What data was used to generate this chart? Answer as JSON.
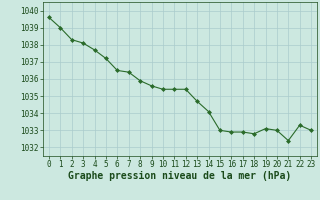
{
  "x": [
    0,
    1,
    2,
    3,
    4,
    5,
    6,
    7,
    8,
    9,
    10,
    11,
    12,
    13,
    14,
    15,
    16,
    17,
    18,
    19,
    20,
    21,
    22,
    23
  ],
  "y": [
    1039.6,
    1039.0,
    1038.3,
    1038.1,
    1037.7,
    1037.2,
    1036.5,
    1036.4,
    1035.9,
    1035.6,
    1035.4,
    1035.4,
    1035.4,
    1034.7,
    1034.1,
    1033.0,
    1032.9,
    1032.9,
    1032.8,
    1033.1,
    1033.0,
    1032.4,
    1033.3,
    1033.0
  ],
  "line_color": "#2a6b2a",
  "marker": "D",
  "marker_size": 2.0,
  "bg_color": "#cce8e0",
  "grid_color": "#aacccc",
  "tick_color": "#1a4a1a",
  "label_color": "#1a4a1a",
  "ylim": [
    1031.5,
    1040.5
  ],
  "xlim": [
    -0.5,
    23.5
  ],
  "yticks": [
    1032,
    1033,
    1034,
    1035,
    1036,
    1037,
    1038,
    1039,
    1040
  ],
  "xticks": [
    0,
    1,
    2,
    3,
    4,
    5,
    6,
    7,
    8,
    9,
    10,
    11,
    12,
    13,
    14,
    15,
    16,
    17,
    18,
    19,
    20,
    21,
    22,
    23
  ],
  "xlabel": "Graphe pression niveau de la mer (hPa)",
  "xlabel_fontsize": 7.0,
  "tick_fontsize": 5.5,
  "linewidth": 0.8
}
